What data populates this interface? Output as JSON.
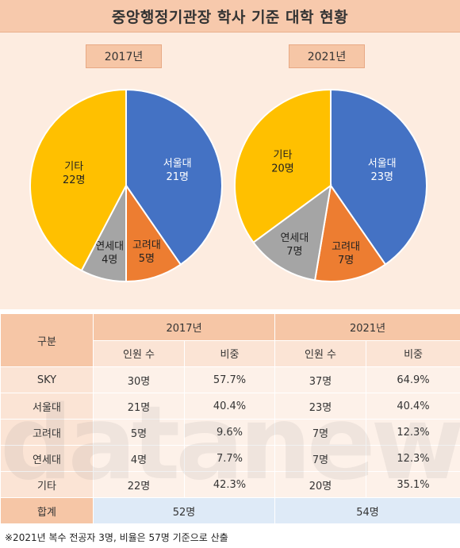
{
  "title": "중앙행정기관장 학사 기준 대학 현황",
  "colors": {
    "seoul": "#4472c4",
    "korea": "#ed7d31",
    "yonsei": "#a5a5a5",
    "other": "#ffc000"
  },
  "chart_data": [
    {
      "type": "pie",
      "title": "2017년",
      "slices": [
        {
          "label": "서울대",
          "value_label": "21명",
          "value": 21,
          "color": "#4472c4"
        },
        {
          "label": "고려대",
          "value_label": "5명",
          "value": 5,
          "color": "#ed7d31"
        },
        {
          "label": "연세대",
          "value_label": "4명",
          "value": 4,
          "color": "#a5a5a5"
        },
        {
          "label": "기타",
          "value_label": "22명",
          "value": 22,
          "color": "#ffc000"
        }
      ]
    },
    {
      "type": "pie",
      "title": "2021년",
      "slices": [
        {
          "label": "서울대",
          "value_label": "23명",
          "value": 23,
          "color": "#4472c4"
        },
        {
          "label": "고려대",
          "value_label": "7명",
          "value": 7,
          "color": "#ed7d31"
        },
        {
          "label": "연세대",
          "value_label": "7명",
          "value": 7,
          "color": "#a5a5a5"
        },
        {
          "label": "기타",
          "value_label": "20명",
          "value": 20,
          "color": "#ffc000"
        }
      ]
    }
  ],
  "table": {
    "category_header": "구분",
    "years": [
      "2017년",
      "2021년"
    ],
    "sub_headers": [
      "인원 수",
      "비중"
    ],
    "rows": [
      {
        "label": "SKY",
        "c2017": "30명",
        "p2017": "57.7%",
        "c2021": "37명",
        "p2021": "64.9%"
      },
      {
        "label": "서울대",
        "c2017": "21명",
        "p2017": "40.4%",
        "c2021": "23명",
        "p2021": "40.4%"
      },
      {
        "label": "고려대",
        "c2017": "5명",
        "p2017": "9.6%",
        "c2021": "7명",
        "p2021": "12.3%"
      },
      {
        "label": "연세대",
        "c2017": "4명",
        "p2017": "7.7%",
        "c2021": "7명",
        "p2021": "12.3%"
      },
      {
        "label": "기타",
        "c2017": "22명",
        "p2017": "42.3%",
        "c2021": "20명",
        "p2021": "35.1%"
      }
    ],
    "total": {
      "label": "합계",
      "t2017": "52명",
      "t2021": "54명"
    }
  },
  "footnote": "※2021년 복수 전공자 3명, 비율은 57명 기준으로 산출",
  "watermark": "datanews"
}
